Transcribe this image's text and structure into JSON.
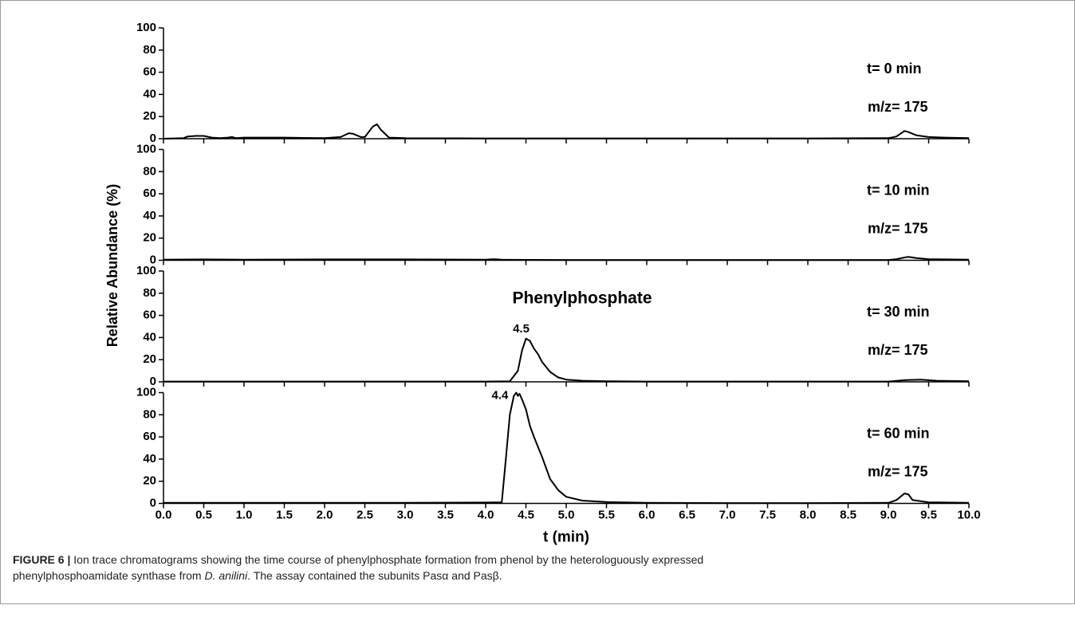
{
  "figure": {
    "ylabel": "Relative Abundance (%)"
  },
  "chart_data": [
    {
      "type": "line",
      "label": "t= 0 min",
      "sublabel": "m/z= 175",
      "xlim": [
        0,
        10
      ],
      "ylim": [
        0,
        100
      ],
      "yticks": [
        0,
        20,
        40,
        60,
        80,
        100
      ],
      "series": [
        {
          "name": "t= 0 min",
          "color": "#000000",
          "x": [
            0.0,
            0.25,
            0.3,
            0.4,
            0.5,
            0.6,
            0.7,
            0.8,
            0.85,
            0.9,
            1.0,
            1.5,
            2.0,
            2.2,
            2.3,
            2.35,
            2.45,
            2.5,
            2.6,
            2.65,
            2.7,
            2.8,
            3.0,
            4.0,
            5.0,
            6.0,
            7.0,
            8.0,
            9.0,
            9.1,
            9.2,
            9.25,
            9.35,
            9.5,
            9.7,
            10.0
          ],
          "values": [
            0,
            0.5,
            2,
            2.5,
            2.5,
            1,
            0.5,
            1,
            1.5,
            0.5,
            1,
            1,
            0.5,
            1.5,
            5,
            4.5,
            1.5,
            1.5,
            11,
            13,
            8,
            1,
            0.5,
            0.3,
            0.3,
            0.3,
            0.3,
            0.3,
            0.5,
            2,
            7,
            6,
            3,
            1.5,
            1,
            0.5
          ]
        }
      ]
    },
    {
      "type": "line",
      "label": "t= 10 min",
      "sublabel": "m/z= 175",
      "xlim": [
        0,
        10
      ],
      "ylim": [
        0,
        100
      ],
      "yticks": [
        0,
        20,
        40,
        60,
        80,
        100
      ],
      "series": [
        {
          "name": "t= 10 min",
          "color": "#000000",
          "x": [
            0,
            0.5,
            1,
            2,
            3,
            4,
            4.1,
            4.2,
            5,
            6,
            7,
            8,
            9,
            9.1,
            9.2,
            9.25,
            9.35,
            9.5,
            10
          ],
          "values": [
            0.5,
            0.8,
            0.5,
            0.8,
            0.8,
            0.5,
            1,
            0.5,
            0.3,
            0.3,
            0.3,
            0.3,
            0.3,
            1,
            2.5,
            3,
            2,
            1,
            0.5
          ]
        }
      ]
    },
    {
      "type": "line",
      "label": "t= 30 min",
      "sublabel": "m/z= 175",
      "annotation": "Phenylphosphate",
      "peak_label": "4.5",
      "xlim": [
        0,
        10
      ],
      "ylim": [
        0,
        100
      ],
      "yticks": [
        0,
        20,
        40,
        60,
        80,
        100
      ],
      "series": [
        {
          "name": "t= 30 min",
          "color": "#000000",
          "x": [
            0,
            1,
            2,
            3,
            4,
            4.3,
            4.4,
            4.45,
            4.5,
            4.55,
            4.6,
            4.65,
            4.7,
            4.8,
            4.9,
            5.0,
            5.2,
            5.5,
            6,
            7,
            8,
            9,
            9.2,
            9.4,
            9.6,
            10
          ],
          "values": [
            0.3,
            0.3,
            0.3,
            0.3,
            0.3,
            0.5,
            10,
            28,
            39,
            37,
            30,
            25,
            18,
            9,
            4,
            2,
            1,
            0.5,
            0.3,
            0.3,
            0.3,
            0.3,
            1.5,
            2,
            1,
            0.5
          ]
        }
      ]
    },
    {
      "type": "line",
      "label": "t= 60 min",
      "sublabel": "m/z= 175",
      "peak_label": "4.4",
      "xlabel": "t (min)",
      "xlim": [
        0,
        10
      ],
      "xticks": [
        {
          "value": 0,
          "label": "0.0"
        },
        0.5,
        {
          "value": 1,
          "label": "1.0"
        },
        1.5,
        {
          "value": 2,
          "label": "2.0"
        },
        2.5,
        {
          "value": 3,
          "label": "3.0"
        },
        3.5,
        {
          "value": 4,
          "label": "4.0"
        },
        4.5,
        {
          "value": 5,
          "label": "5.0"
        },
        5.5,
        {
          "value": 6,
          "label": "6.0"
        },
        6.5,
        {
          "value": 7,
          "label": "7.0"
        },
        7.5,
        {
          "value": 8,
          "label": "8.0"
        },
        8.5,
        {
          "value": 9,
          "label": "9.0"
        },
        9.5,
        {
          "value": 10,
          "label": "10.0"
        }
      ],
      "ylim": [
        0,
        100
      ],
      "yticks": [
        0,
        20,
        40,
        60,
        80,
        100
      ],
      "series": [
        {
          "name": "t= 60 min",
          "color": "#000000",
          "x": [
            0,
            1,
            2,
            3,
            4,
            4.2,
            4.25,
            4.3,
            4.35,
            4.38,
            4.4,
            4.42,
            4.45,
            4.5,
            4.55,
            4.6,
            4.7,
            4.8,
            4.9,
            5.0,
            5.2,
            5.5,
            6,
            7,
            8,
            9,
            9.1,
            9.2,
            9.25,
            9.3,
            9.5,
            10
          ],
          "values": [
            0.5,
            0.5,
            0.5,
            0.5,
            0.8,
            1,
            40,
            80,
            97,
            100,
            97,
            99,
            94,
            85,
            70,
            60,
            42,
            22,
            12,
            6,
            2.5,
            1.2,
            0.5,
            0.3,
            0.3,
            0.5,
            3,
            9,
            8,
            3,
            1,
            0.5
          ]
        }
      ]
    }
  ],
  "caption": [
    "FIGURE 6 |",
    " Ion trace chromatograms showing the time course of phenylphosphate formation from phenol by the heterologuously expressed phenylphosphoamidate synthase from ",
    "D. anilini",
    ". The assay contained the subunits Pasα and Pasβ."
  ]
}
